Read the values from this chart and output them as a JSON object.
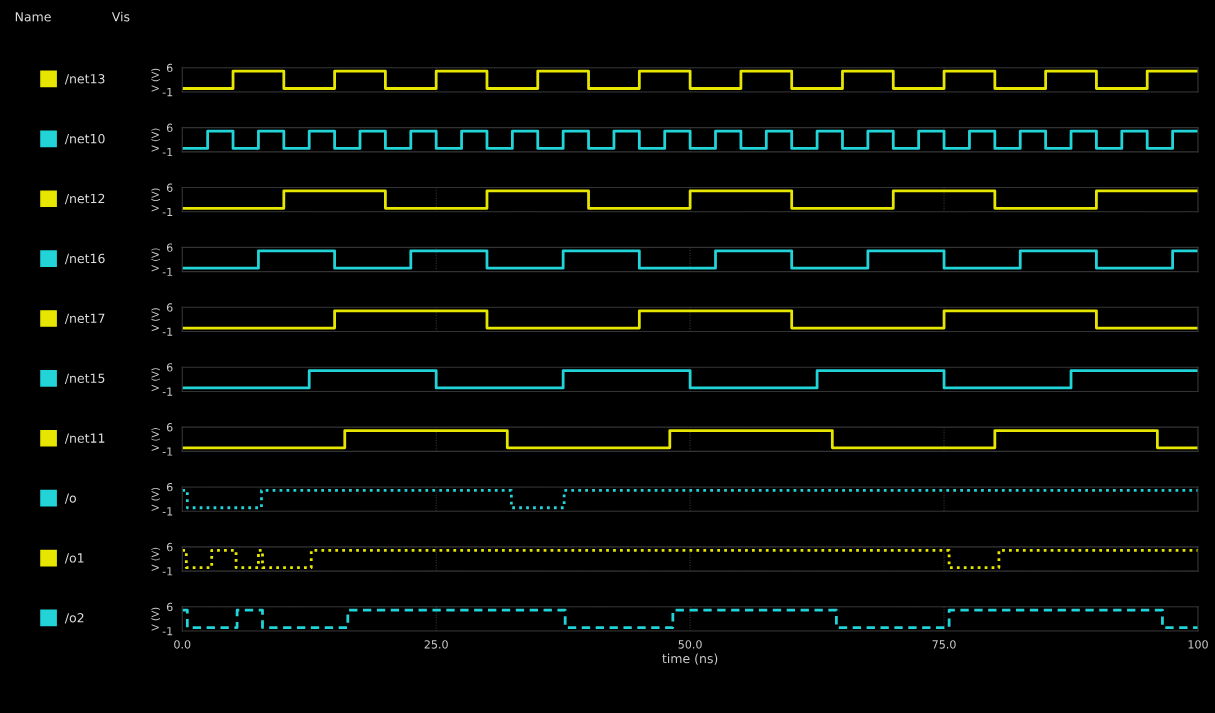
{
  "chart_data": [
    {
      "type": "step",
      "annotations": [
        "Name",
        "Vis"
      ],
      "ylabel": "V (V)",
      "xlim": [
        0,
        100
      ],
      "ylim": [
        -1,
        6
      ],
      "yticks": [
        6,
        -1
      ],
      "tick_labels": "y",
      "grid": true,
      "legend": "left",
      "series": [
        {
          "name": "/net13",
          "color": "#e6e600",
          "x": [
            0,
            5,
            10,
            15,
            20,
            25,
            30,
            35,
            40,
            45,
            50,
            55,
            60,
            65,
            70,
            75,
            80,
            85,
            90,
            95,
            100
          ],
          "values": [
            0,
            5,
            0,
            5,
            0,
            5,
            0,
            5,
            0,
            5,
            0,
            5,
            0,
            5,
            0,
            5,
            0,
            5,
            0,
            5,
            5
          ]
        }
      ]
    },
    {
      "type": "step",
      "ylabel": "V (V)",
      "xlim": [
        0,
        100
      ],
      "ylim": [
        -1,
        6
      ],
      "yticks": [
        6,
        -1
      ],
      "tick_labels": "y",
      "grid": true,
      "legend": "left",
      "series": [
        {
          "name": "/net10",
          "color": "#22d3d8",
          "x": [
            0,
            2.5,
            5,
            7.5,
            10,
            12.5,
            15,
            17.5,
            20,
            22.5,
            25,
            27.5,
            30,
            32.5,
            35,
            37.5,
            40,
            42.5,
            45,
            47.5,
            50,
            52.5,
            55,
            57.5,
            60,
            62.5,
            65,
            67.5,
            70,
            72.5,
            75,
            77.5,
            80,
            82.5,
            85,
            87.5,
            90,
            92.5,
            95,
            97.5,
            100
          ],
          "values": [
            0,
            5,
            0,
            5,
            0,
            5,
            0,
            5,
            0,
            5,
            0,
            5,
            0,
            5,
            0,
            5,
            0,
            5,
            0,
            5,
            0,
            5,
            0,
            5,
            0,
            5,
            0,
            5,
            0,
            5,
            0,
            5,
            0,
            5,
            0,
            5,
            0,
            5,
            0,
            5,
            5
          ]
        }
      ]
    },
    {
      "type": "step",
      "ylabel": "V (V)",
      "xlim": [
        0,
        100
      ],
      "ylim": [
        -1,
        6
      ],
      "yticks": [
        6,
        -1
      ],
      "tick_labels": "y",
      "grid": true,
      "legend": "left",
      "series": [
        {
          "name": "/net12",
          "color": "#e6e600",
          "x": [
            0,
            10,
            20,
            30,
            40,
            50,
            60,
            70,
            80,
            90,
            100
          ],
          "values": [
            0,
            5,
            0,
            5,
            0,
            5,
            0,
            5,
            0,
            5,
            5
          ]
        }
      ]
    },
    {
      "type": "step",
      "ylabel": "V (V)",
      "xlim": [
        0,
        100
      ],
      "ylim": [
        -1,
        6
      ],
      "yticks": [
        6,
        -1
      ],
      "tick_labels": "y",
      "grid": true,
      "legend": "left",
      "series": [
        {
          "name": "/net16",
          "color": "#22d3d8",
          "x": [
            0,
            7.5,
            15,
            22.5,
            30,
            37.5,
            45,
            52.5,
            60,
            67.5,
            75,
            82.5,
            90,
            97.5,
            100
          ],
          "values": [
            0,
            5,
            0,
            5,
            0,
            5,
            0,
            5,
            0,
            5,
            0,
            5,
            0,
            5,
            5
          ]
        }
      ]
    },
    {
      "type": "step",
      "ylabel": "V (V)",
      "xlim": [
        0,
        100
      ],
      "ylim": [
        -1,
        6
      ],
      "yticks": [
        6,
        -1
      ],
      "tick_labels": "y",
      "grid": true,
      "legend": "left",
      "series": [
        {
          "name": "/net17",
          "color": "#e6e600",
          "x": [
            0,
            15,
            30,
            45,
            60,
            75,
            90,
            100
          ],
          "values": [
            0,
            5,
            0,
            5,
            0,
            5,
            0,
            0
          ]
        }
      ]
    },
    {
      "type": "step",
      "ylabel": "V (V)",
      "xlim": [
        0,
        100
      ],
      "ylim": [
        -1,
        6
      ],
      "yticks": [
        6,
        -1
      ],
      "tick_labels": "y",
      "grid": true,
      "legend": "left",
      "series": [
        {
          "name": "/net15",
          "color": "#22d3d8",
          "x": [
            0,
            12.5,
            25,
            37.5,
            50,
            62.5,
            75,
            87.5,
            100
          ],
          "values": [
            0,
            5,
            0,
            5,
            0,
            5,
            0,
            5,
            5
          ]
        }
      ]
    },
    {
      "type": "step",
      "ylabel": "V (V)",
      "xlim": [
        0,
        100
      ],
      "ylim": [
        -1,
        6
      ],
      "yticks": [
        6,
        -1
      ],
      "tick_labels": "y",
      "grid": true,
      "legend": "left",
      "series": [
        {
          "name": "/net11",
          "color": "#e6e600",
          "x": [
            0,
            16,
            32,
            48,
            64,
            80,
            96,
            100
          ],
          "values": [
            0,
            5,
            0,
            5,
            0,
            5,
            0,
            0
          ]
        }
      ]
    },
    {
      "type": "step",
      "ylabel": "V (V)",
      "xlim": [
        0,
        100
      ],
      "ylim": [
        -1,
        6
      ],
      "yticks": [
        6,
        -1
      ],
      "tick_labels": "y",
      "grid": true,
      "legend": "left",
      "line_style": "dotted",
      "series": [
        {
          "name": "/o",
          "color": "#22d3d8",
          "x": [
            0,
            0.5,
            7.8,
            32.4,
            37.6,
            100
          ],
          "values": [
            5,
            0,
            5,
            0,
            5,
            5
          ]
        }
      ]
    },
    {
      "type": "step",
      "ylabel": "V (V)",
      "xlim": [
        0,
        100
      ],
      "ylim": [
        -1,
        6
      ],
      "yticks": [
        6,
        -1
      ],
      "tick_labels": "y",
      "grid": true,
      "legend": "left",
      "line_style": "dotted",
      "series": [
        {
          "name": "/o1",
          "color": "#e6e600",
          "x": [
            0,
            0.4,
            2.9,
            5.3,
            7.5,
            7.9,
            12.7,
            75.5,
            80.4,
            100
          ],
          "values": [
            5,
            0,
            5,
            0,
            5,
            0,
            5,
            0,
            5,
            5
          ]
        }
      ]
    },
    {
      "type": "step",
      "ylabel": "V (V)",
      "xlabel": "time (ns)",
      "xlim": [
        0,
        100
      ],
      "ylim": [
        -1,
        6
      ],
      "yticks": [
        6,
        -1
      ],
      "xticks": [
        {
          "value": 0,
          "label": "0.0"
        },
        {
          "value": 25,
          "label": "25.0"
        },
        {
          "value": 50,
          "label": "50.0"
        },
        {
          "value": 75,
          "label": "75.0"
        },
        100
      ],
      "grid": true,
      "legend": "left",
      "line_style": "dashed",
      "series": [
        {
          "name": "/o2",
          "color": "#22d3d8",
          "x": [
            0,
            0.5,
            5.4,
            7.9,
            16.3,
            37.7,
            48.3,
            64.4,
            75.5,
            96.5,
            100
          ],
          "values": [
            5,
            0,
            5,
            0,
            5,
            0,
            5,
            0,
            5,
            0,
            0
          ]
        }
      ]
    }
  ]
}
